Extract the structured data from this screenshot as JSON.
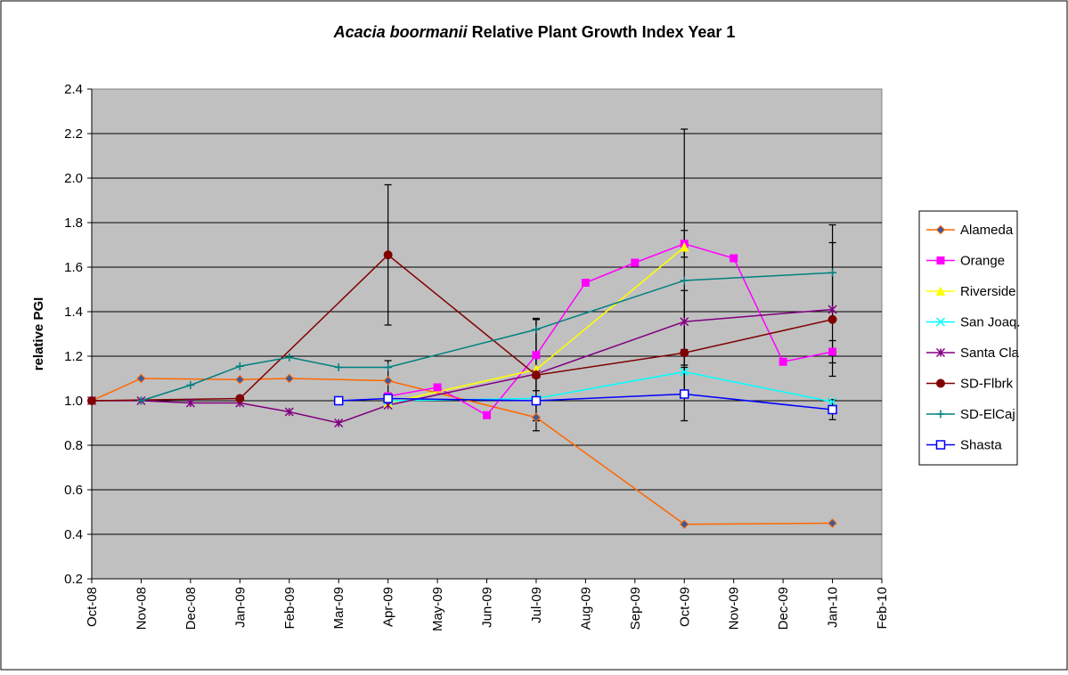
{
  "chart_data": {
    "type": "line",
    "title_species": "Acacia boormanii",
    "title": "Relative Plant Growth Index Year 1",
    "y_label": "relative PGI",
    "categories": [
      "Oct-08",
      "Nov-08",
      "Dec-08",
      "Jan-09",
      "Feb-09",
      "Mar-09",
      "Apr-09",
      "May-09",
      "Jun-09",
      "Jul-09",
      "Aug-09",
      "Sep-09",
      "Oct-09",
      "Nov-09",
      "Dec-09",
      "Jan-10",
      "Feb-10"
    ],
    "ylim": [
      0.2,
      2.4
    ],
    "yticks": [
      0.2,
      0.4,
      0.6,
      0.8,
      {
        "value": 1,
        "label": "1.0"
      },
      1.2,
      1.4,
      1.6,
      1.8,
      {
        "value": 2,
        "label": "2.0"
      },
      2.2,
      2.4
    ],
    "grid": true,
    "legend": "right",
    "series": [
      {
        "name": "Alameda",
        "color": "#ff6600",
        "marker": "diamond",
        "marker_color": "#3a5a9c",
        "x": [
          "Oct-08",
          "Nov-08",
          "Jan-09",
          "Feb-09",
          "Apr-09",
          "Jul-09",
          "Oct-09",
          "Jan-10"
        ],
        "values": [
          1.0,
          1.1,
          1.095,
          1.1,
          1.09,
          0.925,
          0.445,
          0.45
        ],
        "errors": [
          null,
          null,
          null,
          null,
          0.09,
          null,
          null,
          null
        ]
      },
      {
        "name": "Orange",
        "color": "#ff00ff",
        "marker": "square",
        "marker_color": "#ff00ff",
        "x": [
          "Apr-09",
          "May-09",
          "Jun-09",
          "Jul-09",
          "Aug-09",
          "Sep-09",
          "Oct-09",
          "Nov-09",
          "Dec-09",
          "Jan-10"
        ],
        "values": [
          1.02,
          1.06,
          0.935,
          1.205,
          1.53,
          1.62,
          1.705,
          1.64,
          1.175,
          1.22
        ],
        "errors": [
          null,
          null,
          null,
          0.16,
          null,
          null,
          0.06,
          null,
          null,
          0.05
        ]
      },
      {
        "name": "Riverside",
        "color": "#ffff00",
        "marker": "triangle",
        "marker_color": "#ffff00",
        "x": [
          "Apr-09",
          "Jul-09",
          "Oct-09"
        ],
        "values": [
          0.99,
          1.14,
          1.69
        ],
        "errors": [
          null,
          0.23,
          0.53
        ]
      },
      {
        "name": "San Joaq.",
        "color": "#00ffff",
        "marker": "x",
        "marker_color": "#00ffff",
        "x": [
          "Apr-09",
          "Jul-09",
          "Oct-09",
          "Jan-10"
        ],
        "values": [
          1.0,
          1.01,
          1.13,
          0.995
        ],
        "errors": [
          null,
          null,
          0.1,
          null
        ]
      },
      {
        "name": "Santa Cla",
        "color": "#800080",
        "marker": "star",
        "marker_color": "#800080",
        "x": [
          "Oct-08",
          "Nov-08",
          "Dec-08",
          "Jan-09",
          "Feb-09",
          "Mar-09",
          "Apr-09",
          "Jul-09",
          "Oct-09",
          "Jan-10"
        ],
        "values": [
          1.0,
          1.0,
          0.99,
          0.99,
          0.95,
          0.9,
          0.98,
          1.12,
          1.355,
          1.41
        ],
        "errors": [
          null,
          null,
          null,
          null,
          null,
          null,
          null,
          null,
          0.14,
          0.3
        ]
      },
      {
        "name": "SD-Flbrk",
        "color": "#800000",
        "marker": "circle",
        "marker_color": "#800000",
        "x": [
          "Oct-08",
          "Jan-09",
          "Apr-09",
          "Jul-09",
          "Oct-09",
          "Jan-10"
        ],
        "values": [
          1.0,
          1.01,
          1.655,
          1.115,
          1.215,
          1.365
        ],
        "errors": [
          null,
          null,
          0.315,
          0.25,
          null,
          null
        ]
      },
      {
        "name": "SD-ElCaj",
        "color": "#008080",
        "marker": "plus",
        "marker_color": "#008080",
        "x": [
          "Nov-08",
          "Dec-08",
          "Jan-09",
          "Feb-09",
          "Mar-09",
          "Apr-09",
          "Jul-09",
          "Oct-09",
          "Jan-10"
        ],
        "values": [
          1.0,
          1.07,
          1.155,
          1.195,
          1.15,
          1.15,
          1.32,
          1.54,
          1.575
        ],
        "errors": [
          null,
          null,
          null,
          null,
          null,
          null,
          null,
          null,
          0.215
        ]
      },
      {
        "name": "Shasta",
        "color": "#0000ff",
        "marker": "open-square",
        "marker_color": "#ffffff",
        "x": [
          "Mar-09",
          "Apr-09",
          "Jul-09",
          "Oct-09",
          "Jan-10"
        ],
        "values": [
          1.0,
          1.01,
          1.0,
          1.03,
          0.96
        ],
        "errors": [
          null,
          null,
          null,
          0.12,
          0.045
        ]
      }
    ]
  }
}
